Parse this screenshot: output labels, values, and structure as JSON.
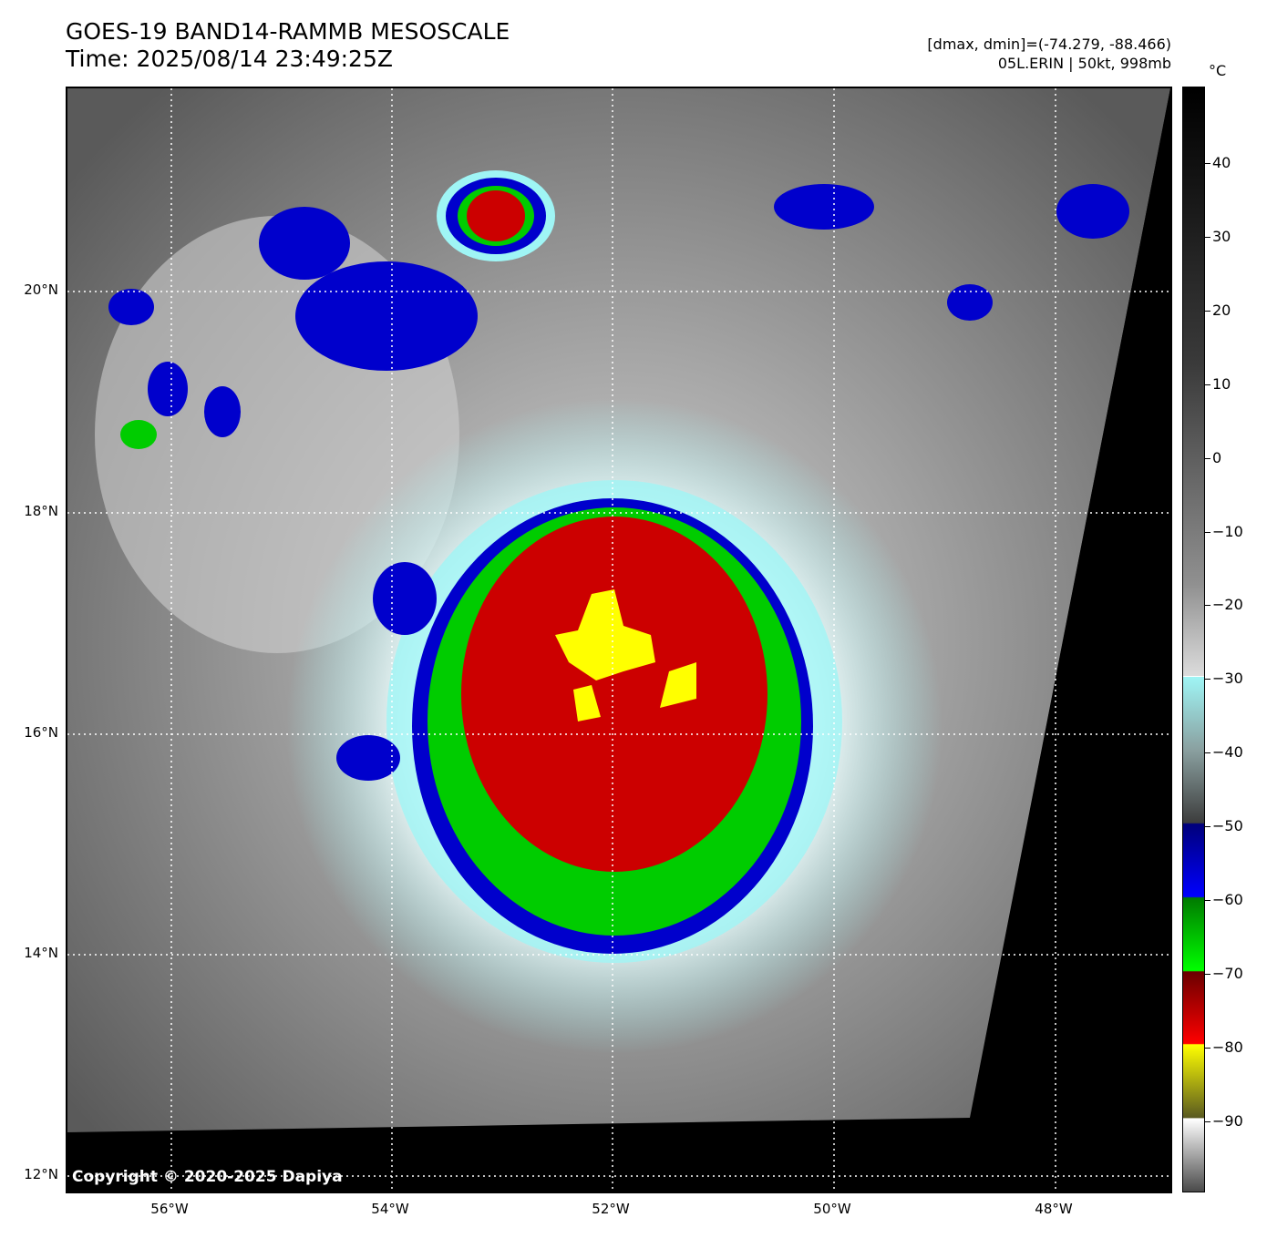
{
  "header": {
    "title_line1": "GOES-19 BAND14-RAMMB MESOSCALE",
    "title_line2": "Time: 2025/08/14 23:49:25Z",
    "range_text": "[dmax, dmin]=(-74.279, -88.466)",
    "storm_text": "05L.ERIN | 50kt, 998mb"
  },
  "colorbar": {
    "unit": "°C",
    "ticks": [
      "40",
      "30",
      "20",
      "10",
      "0",
      "−10",
      "−20",
      "−30",
      "−40",
      "−50",
      "−60",
      "−70",
      "−80",
      "−90"
    ]
  },
  "map": {
    "lat_labels": [
      "20°N",
      "18°N",
      "16°N",
      "14°N",
      "12°N"
    ],
    "lon_labels": [
      "56°W",
      "54°W",
      "52°W",
      "50°W",
      "48°W"
    ],
    "copyright": "Copyright © 2020-2025 Dapiya",
    "colors": {
      "cold_blue": "#0000cc",
      "green": "#00cc00",
      "red": "#cc0000",
      "yellow": "#ffff00",
      "cyan": "#9ff5f5"
    }
  }
}
